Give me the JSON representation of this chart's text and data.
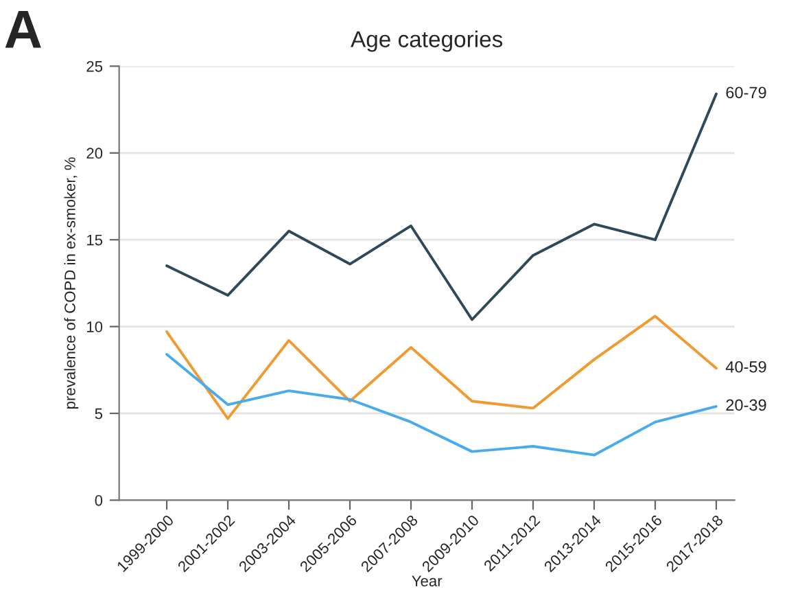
{
  "chart_data": {
    "type": "line",
    "title": "Age categories",
    "xlabel": "Year",
    "ylabel": "prevalence of COPD in ex-smoker, %",
    "annotations": [
      "A"
    ],
    "categories": [
      "1999-2000",
      "2001-2002",
      "2003-2004",
      "2005-2006",
      "2007-2008",
      "2009-2010",
      "2011-2012",
      "2013-2014",
      "2015-2016",
      "2017-2018"
    ],
    "series": [
      {
        "name": "60-79",
        "color": "#2e4a5a",
        "values": [
          13.5,
          11.8,
          15.5,
          13.6,
          15.8,
          10.4,
          14.1,
          15.9,
          15.0,
          23.4
        ]
      },
      {
        "name": "40-59",
        "color": "#f09a30",
        "values": [
          9.7,
          4.7,
          9.2,
          5.7,
          8.8,
          5.7,
          5.3,
          8.1,
          10.6,
          7.6
        ]
      },
      {
        "name": "20-39",
        "color": "#48acec",
        "values": [
          8.4,
          5.5,
          6.3,
          5.8,
          4.5,
          2.8,
          3.1,
          2.6,
          4.5,
          5.4
        ]
      }
    ],
    "ylim": [
      0,
      25
    ],
    "yticks": [
      0,
      5,
      10,
      15,
      20,
      25
    ],
    "grid": "y",
    "legend": false,
    "marker": "none",
    "line_style": "solid"
  }
}
